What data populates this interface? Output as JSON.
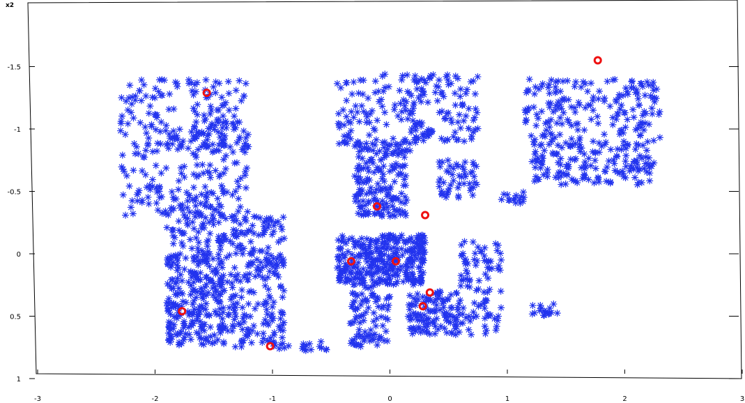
{
  "chart_data": {
    "type": "scatter",
    "title": "",
    "xlabel": "",
    "ylabel": "",
    "corner_label": "x2",
    "xlim": [
      -3,
      3
    ],
    "ylim": [
      1,
      -2
    ],
    "y_axis_inverted": true,
    "grid": false,
    "legend": "none",
    "x_ticks": [
      -3,
      -2,
      -1,
      0,
      1,
      2,
      3
    ],
    "x_tick_labels": [
      "-3",
      "-2",
      "-1",
      "0",
      "1",
      "2",
      "3"
    ],
    "y_ticks": [
      -1.5,
      -1,
      -0.5,
      0,
      0.5,
      1
    ],
    "y_tick_labels": [
      "-1.5",
      "-1",
      "-0.5",
      "0",
      "0.5",
      "1"
    ],
    "colors": {
      "points": "#2233ee",
      "highlights": "#ee1111",
      "axes": "#000000"
    },
    "series": [
      {
        "marker": "asterisk",
        "color": "#2233ee",
        "clusters": [
          {
            "x": [
              -2.3,
              -1.2
            ],
            "y": [
              -1.4,
              -0.3
            ],
            "n": 300
          },
          {
            "x": [
              -1.9,
              -1.4
            ],
            "y": [
              -0.4,
              0.0
            ],
            "n": 70
          },
          {
            "x": [
              -1.9,
              -1.4
            ],
            "y": [
              0.0,
              0.75
            ],
            "n": 260
          },
          {
            "x": [
              -1.4,
              -0.9
            ],
            "y": [
              -0.3,
              0.75
            ],
            "n": 230
          },
          {
            "x": [
              -1.7,
              -1.2
            ],
            "y": [
              -1.05,
              -0.8
            ],
            "n": 40
          },
          {
            "x": [
              -1.0,
              -0.5
            ],
            "y": [
              0.7,
              0.78
            ],
            "n": 20
          },
          {
            "x": [
              -0.45,
              0.3
            ],
            "y": [
              -1.45,
              -0.8
            ],
            "n": 110
          },
          {
            "x": [
              -0.3,
              0.15
            ],
            "y": [
              -0.9,
              -0.3
            ],
            "n": 180
          },
          {
            "x": [
              -0.45,
              0.3
            ],
            "y": [
              -0.15,
              0.25
            ],
            "n": 330
          },
          {
            "x": [
              -0.35,
              0.0
            ],
            "y": [
              0.25,
              0.75
            ],
            "n": 90
          },
          {
            "x": [
              0.15,
              0.75
            ],
            "y": [
              -1.45,
              -0.9
            ],
            "n": 100
          },
          {
            "x": [
              0.4,
              0.75
            ],
            "y": [
              -0.75,
              -0.45
            ],
            "n": 50
          },
          {
            "x": [
              0.15,
              0.6
            ],
            "y": [
              0.3,
              0.65
            ],
            "n": 120
          },
          {
            "x": [
              0.6,
              0.95
            ],
            "y": [
              -0.1,
              0.65
            ],
            "n": 90
          },
          {
            "x": [
              0.95,
              1.15
            ],
            "y": [
              -0.5,
              -0.4
            ],
            "n": 15
          },
          {
            "x": [
              1.15,
              2.3
            ],
            "y": [
              -1.4,
              -0.9
            ],
            "n": 180
          },
          {
            "x": [
              1.2,
              2.25
            ],
            "y": [
              -0.9,
              -0.55
            ],
            "n": 160
          },
          {
            "x": [
              1.2,
              1.45
            ],
            "y": [
              0.4,
              0.5
            ],
            "n": 20
          }
        ]
      },
      {
        "marker": "circle",
        "color": "#ee1111",
        "points": [
          [
            1.77,
            -1.55
          ],
          [
            -1.56,
            -1.29
          ],
          [
            0.3,
            -0.31
          ],
          [
            -0.33,
            0.06
          ],
          [
            0.34,
            0.31
          ],
          [
            -0.11,
            -0.38
          ],
          [
            0.05,
            0.06
          ],
          [
            0.28,
            0.42
          ],
          [
            -1.77,
            0.46
          ],
          [
            -1.02,
            0.74
          ]
        ]
      }
    ]
  }
}
